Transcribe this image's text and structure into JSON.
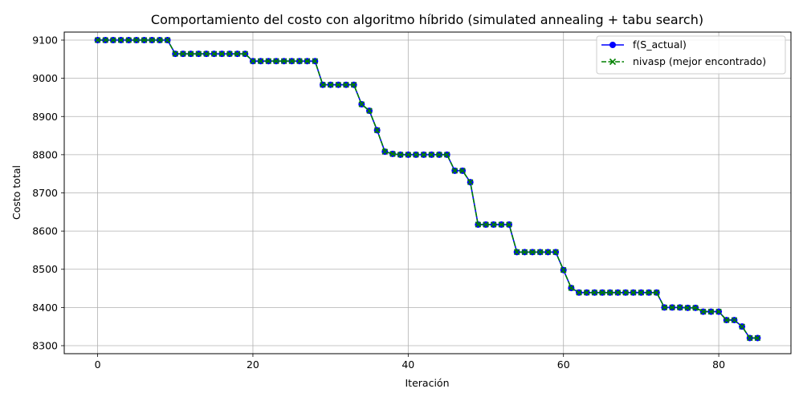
{
  "chart_data": {
    "type": "line",
    "title": "Comportamiento del costo con algoritmo híbrido (simulated annealing + tabu search)",
    "xlabel": "Iteración",
    "ylabel": "Costo total",
    "xlim": [
      -4.3,
      89.3
    ],
    "ylim": [
      8279,
      9121
    ],
    "xticks": [
      0,
      20,
      40,
      60,
      80
    ],
    "yticks": [
      8300,
      8400,
      8500,
      8600,
      8700,
      8800,
      8900,
      9000,
      9100
    ],
    "grid": true,
    "legend_position": "top-right",
    "x": [
      0,
      1,
      2,
      3,
      4,
      5,
      6,
      7,
      8,
      9,
      10,
      11,
      12,
      13,
      14,
      15,
      16,
      17,
      18,
      19,
      20,
      21,
      22,
      23,
      24,
      25,
      26,
      27,
      28,
      29,
      30,
      31,
      32,
      33,
      34,
      35,
      36,
      37,
      38,
      39,
      40,
      41,
      42,
      43,
      44,
      45,
      46,
      47,
      48,
      49,
      50,
      51,
      52,
      53,
      54,
      55,
      56,
      57,
      58,
      59,
      60,
      61,
      62,
      63,
      64,
      65,
      66,
      67,
      68,
      69,
      70,
      71,
      72,
      73,
      74,
      75,
      76,
      77,
      78,
      79,
      80,
      81,
      82,
      83,
      84,
      85
    ],
    "series": [
      {
        "name": "f(S_actual)",
        "color": "#0000ff",
        "line_color": "#0000ff",
        "linestyle": "solid",
        "marker": "circle",
        "values": [
          9100,
          9100,
          9100,
          9100,
          9100,
          9100,
          9100,
          9100,
          9100,
          9100,
          9064,
          9064,
          9064,
          9064,
          9064,
          9064,
          9064,
          9064,
          9064,
          9064,
          9045,
          9045,
          9045,
          9045,
          9045,
          9045,
          9045,
          9045,
          9045,
          8983,
          8983,
          8983,
          8983,
          8983,
          8932,
          8915,
          8864,
          8808,
          8802,
          8800,
          8800,
          8800,
          8800,
          8800,
          8800,
          8800,
          8758,
          8758,
          8728,
          8617,
          8617,
          8617,
          8617,
          8617,
          8545,
          8545,
          8545,
          8545,
          8545,
          8545,
          8498,
          8451,
          8439,
          8439,
          8439,
          8439,
          8439,
          8439,
          8439,
          8439,
          8439,
          8439,
          8439,
          8400,
          8400,
          8400,
          8399,
          8399,
          8389,
          8389,
          8389,
          8367,
          8367,
          8350,
          8320,
          8320
        ]
      },
      {
        "name": "nivasp (mejor encontrado)",
        "color": "#008000",
        "line_color": "#008000",
        "linestyle": "dashed",
        "marker": "x",
        "values": [
          9100,
          9100,
          9100,
          9100,
          9100,
          9100,
          9100,
          9100,
          9100,
          9100,
          9064,
          9064,
          9064,
          9064,
          9064,
          9064,
          9064,
          9064,
          9064,
          9064,
          9045,
          9045,
          9045,
          9045,
          9045,
          9045,
          9045,
          9045,
          9045,
          8983,
          8983,
          8983,
          8983,
          8983,
          8932,
          8915,
          8864,
          8808,
          8802,
          8800,
          8800,
          8800,
          8800,
          8800,
          8800,
          8800,
          8758,
          8758,
          8728,
          8617,
          8617,
          8617,
          8617,
          8617,
          8545,
          8545,
          8545,
          8545,
          8545,
          8545,
          8498,
          8451,
          8439,
          8439,
          8439,
          8439,
          8439,
          8439,
          8439,
          8439,
          8439,
          8439,
          8439,
          8400,
          8400,
          8400,
          8399,
          8399,
          8389,
          8389,
          8389,
          8367,
          8367,
          8350,
          8320,
          8320
        ]
      }
    ]
  }
}
